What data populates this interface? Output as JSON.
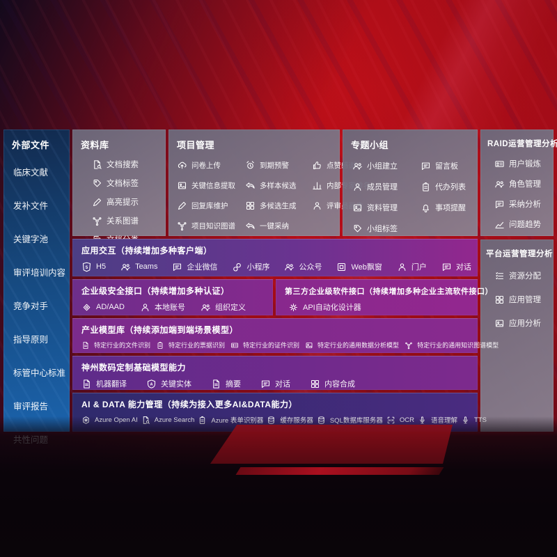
{
  "colors": {
    "background_red": "#b30d18",
    "sidebar_blue": "#1b63ac",
    "panel_gray": "#7c7789",
    "band_magenta": "#92278e",
    "band_violet": "#5e2b8a",
    "band_indigo": "#2f2a6c"
  },
  "sidebar": {
    "title": "外部文件",
    "items": [
      "临床文献",
      "发补文件",
      "关键字池",
      "审评培训内容",
      "竞争对手",
      "指导原则",
      "标管中心标准",
      "审评报告",
      "共性问题"
    ]
  },
  "panels": {
    "library": {
      "title": "资料库",
      "items": [
        {
          "icon": "doc-search",
          "label": "文档搜索"
        },
        {
          "icon": "tag",
          "label": "文档标签"
        },
        {
          "icon": "highlight-pen",
          "label": "高亮提示"
        },
        {
          "icon": "relation-graph",
          "label": "关系图谱"
        },
        {
          "icon": "doc-category",
          "label": "文档分类"
        }
      ]
    },
    "project": {
      "title": "项目管理",
      "items": [
        {
          "icon": "cloud-upload",
          "label": "问卷上传"
        },
        {
          "icon": "alarm",
          "label": "到期预警"
        },
        {
          "icon": "thumbs-up",
          "label": "点赞感谢"
        },
        {
          "icon": "key-info-extract",
          "label": "关键信息提取"
        },
        {
          "icon": "multi-sample",
          "label": "多样本候选"
        },
        {
          "icon": "expert-ranking",
          "label": "内部专家排名"
        },
        {
          "icon": "reply-maintain",
          "label": "回复库维护"
        },
        {
          "icon": "multi-generate",
          "label": "多候选生成"
        },
        {
          "icon": "reviewer-portrait",
          "label": "评审员画像"
        },
        {
          "icon": "project-graph",
          "label": "项目知识图谱"
        },
        {
          "icon": "one-click-adopt",
          "label": "一键采纳"
        }
      ]
    },
    "groups": {
      "title": "专题小组",
      "items": [
        {
          "icon": "group-create",
          "label": "小组建立"
        },
        {
          "icon": "bbs",
          "label": "留言板"
        },
        {
          "icon": "member-manage",
          "label": "成员管理"
        },
        {
          "icon": "todo-list",
          "label": "代办列表"
        },
        {
          "icon": "material-manage",
          "label": "资料管理"
        },
        {
          "icon": "reminder",
          "label": "事项提醒"
        },
        {
          "icon": "group-tag",
          "label": "小组标签"
        }
      ]
    },
    "raid": {
      "title": "RAID运营管理分析",
      "items": [
        {
          "icon": "user-training",
          "label": "用户锻炼"
        },
        {
          "icon": "role-manage",
          "label": "角色管理"
        },
        {
          "icon": "adoption-analysis",
          "label": "采纳分析"
        },
        {
          "icon": "issue-trend",
          "label": "问题趋势"
        }
      ]
    },
    "platform": {
      "title": "平台运营管理分析",
      "items": [
        {
          "icon": "resource-alloc",
          "label": "资源分配"
        },
        {
          "icon": "app-manage",
          "label": "应用管理"
        },
        {
          "icon": "app-analysis",
          "label": "应用分析"
        }
      ]
    }
  },
  "bands": {
    "interaction": {
      "title": "应用交互（持续增加多种客户端）",
      "items": [
        {
          "icon": "h5",
          "label": "H5"
        },
        {
          "icon": "teams",
          "label": "Teams"
        },
        {
          "icon": "wechat-work",
          "label": "企业微信"
        },
        {
          "icon": "mini-program",
          "label": "小程序"
        },
        {
          "icon": "official-account",
          "label": "公众号"
        },
        {
          "icon": "web-popup",
          "label": "Web飘窗"
        },
        {
          "icon": "portal",
          "label": "门户"
        },
        {
          "icon": "dialog",
          "label": "对话"
        }
      ]
    },
    "security": {
      "title": "企业级安全接口（持续增加多种认证）",
      "items": [
        {
          "icon": "ad-aad",
          "label": "AD/AAD"
        },
        {
          "icon": "local-account",
          "label": "本地账号"
        },
        {
          "icon": "org-define",
          "label": "组织定义"
        }
      ]
    },
    "third_party": {
      "title": "第三方企业级软件接口（持续增加多种企业主流软件接口）",
      "items": [
        {
          "icon": "api-designer",
          "label": "API自动化设计器"
        }
      ]
    },
    "industry_models": {
      "title": "产业模型库（持续添加端到端场景模型）",
      "items": [
        {
          "icon": "doc-recognize",
          "label": "特定行业的文件识别"
        },
        {
          "icon": "receipt-recognize",
          "label": "特定行业的票据识别"
        },
        {
          "icon": "card-recognize",
          "label": "特定行业的证件识别"
        },
        {
          "icon": "data-analysis-model",
          "label": "特定行业的通用数据分析模型"
        },
        {
          "icon": "knowledge-graph-model",
          "label": "特定行业的通用知识图谱模型"
        }
      ]
    },
    "base_models": {
      "title": "神州数码定制基础模型能力",
      "items": [
        {
          "icon": "machine-translate",
          "label": "机器翻译"
        },
        {
          "icon": "key-entity",
          "label": "关键实体"
        },
        {
          "icon": "summary",
          "label": "摘要"
        },
        {
          "icon": "dialog",
          "label": "对话"
        },
        {
          "icon": "content-compose",
          "label": "内容合成"
        }
      ]
    },
    "ai_data": {
      "title": "AI & DATA 能力管理（持续为接入更多AI&DATA能力）",
      "items": [
        {
          "icon": "azure-openai",
          "label": "Azure Open AI"
        },
        {
          "icon": "azure-search",
          "label": "Azure Search"
        },
        {
          "icon": "azure-form",
          "label": "Azure 表单识别器"
        },
        {
          "icon": "cache-server",
          "label": "缓存服务器"
        },
        {
          "icon": "sql-server",
          "label": "SQL数据库服务器"
        },
        {
          "icon": "ocr",
          "label": "OCR"
        },
        {
          "icon": "speech-understand",
          "label": "语音理解"
        },
        {
          "icon": "tts",
          "label": "TTS"
        }
      ]
    }
  }
}
